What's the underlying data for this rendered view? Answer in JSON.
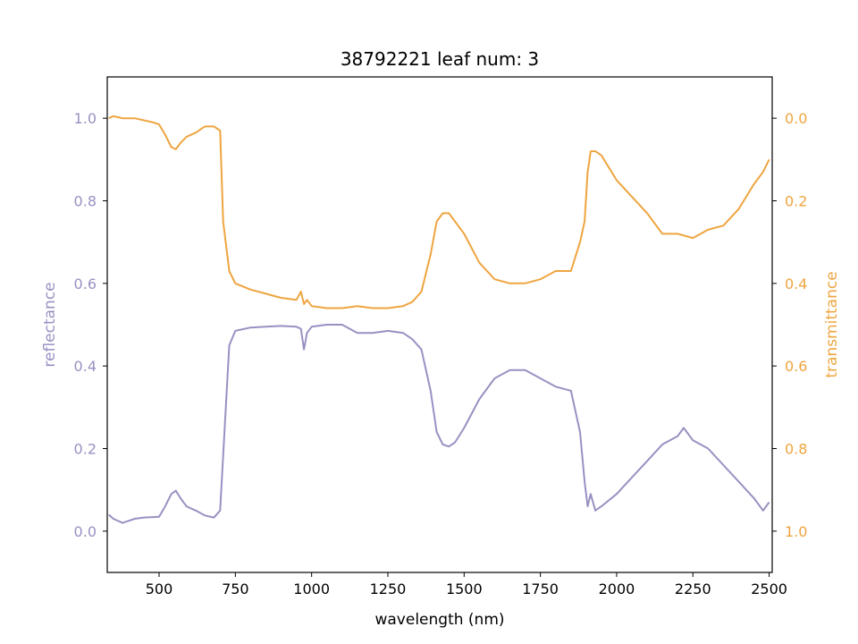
{
  "chart_data": {
    "type": "line",
    "title": "38792221 leaf num: 3",
    "xlabel": "wavelength (nm)",
    "ylabel_left": "reflectance",
    "ylabel_right": "transmittance",
    "xlim": [
      330,
      2510
    ],
    "ylim_left": [
      -0.1,
      1.1
    ],
    "ylim_right": [
      1.1,
      -0.1
    ],
    "right_axis_inverted": true,
    "x_ticks": [
      500,
      750,
      1000,
      1250,
      1500,
      1750,
      2000,
      2250,
      2500
    ],
    "x_tick_labels": [
      "500",
      "750",
      "1000",
      "1250",
      "1500",
      "1750",
      "2000",
      "2250",
      "2500"
    ],
    "y_left_ticks": [
      0.0,
      0.2,
      0.4,
      0.6,
      0.8,
      1.0
    ],
    "y_left_tick_labels": [
      "0.0",
      "0.2",
      "0.4",
      "0.6",
      "0.8",
      "1.0"
    ],
    "y_right_ticks": [
      0.0,
      0.2,
      0.4,
      0.6,
      0.8,
      1.0
    ],
    "y_right_tick_labels": [
      "0.0",
      "0.2",
      "0.4",
      "0.6",
      "0.8",
      "1.0"
    ],
    "grid": false,
    "legend": "none",
    "colors": {
      "reflectance": "#9891c2",
      "transmittance": "#eea540",
      "axes": "#000000"
    },
    "series": [
      {
        "axis": "left",
        "x": [
          335,
          350,
          380,
          400,
          420,
          450,
          480,
          500,
          520,
          540,
          555,
          570,
          590,
          620,
          650,
          680,
          700,
          715,
          730,
          750,
          800,
          850,
          900,
          950,
          965,
          975,
          985,
          1000,
          1050,
          1100,
          1150,
          1200,
          1250,
          1300,
          1330,
          1360,
          1390,
          1410,
          1430,
          1450,
          1470,
          1500,
          1550,
          1600,
          1650,
          1700,
          1750,
          1800,
          1850,
          1880,
          1895,
          1905,
          1915,
          1930,
          1950,
          2000,
          2050,
          2100,
          2150,
          2200,
          2220,
          2250,
          2300,
          2350,
          2400,
          2450,
          2480,
          2500
        ],
        "y": [
          0.04,
          0.03,
          0.02,
          0.025,
          0.03,
          0.033,
          0.034,
          0.035,
          0.06,
          0.09,
          0.098,
          0.08,
          0.06,
          0.05,
          0.038,
          0.033,
          0.05,
          0.25,
          0.45,
          0.485,
          0.493,
          0.495,
          0.497,
          0.495,
          0.49,
          0.44,
          0.48,
          0.495,
          0.5,
          0.5,
          0.48,
          0.48,
          0.485,
          0.48,
          0.465,
          0.44,
          0.34,
          0.24,
          0.21,
          0.205,
          0.215,
          0.25,
          0.32,
          0.37,
          0.39,
          0.39,
          0.37,
          0.35,
          0.34,
          0.24,
          0.12,
          0.06,
          0.09,
          0.05,
          0.06,
          0.09,
          0.13,
          0.17,
          0.21,
          0.23,
          0.25,
          0.22,
          0.2,
          0.16,
          0.12,
          0.08,
          0.05,
          0.07
        ]
      },
      {
        "axis": "right",
        "x": [
          335,
          350,
          380,
          420,
          450,
          480,
          500,
          520,
          540,
          555,
          570,
          590,
          620,
          650,
          680,
          700,
          710,
          730,
          750,
          800,
          850,
          900,
          950,
          965,
          975,
          985,
          1000,
          1050,
          1100,
          1150,
          1200,
          1250,
          1300,
          1330,
          1360,
          1390,
          1410,
          1430,
          1450,
          1470,
          1500,
          1550,
          1600,
          1650,
          1700,
          1750,
          1800,
          1850,
          1880,
          1895,
          1905,
          1915,
          1930,
          1950,
          2000,
          2050,
          2100,
          2150,
          2200,
          2250,
          2300,
          2350,
          2400,
          2450,
          2480,
          2500
        ],
        "y": [
          0.0,
          -0.005,
          0.0,
          0.0,
          0.005,
          0.01,
          0.015,
          0.04,
          0.07,
          0.075,
          0.06,
          0.045,
          0.035,
          0.02,
          0.02,
          0.03,
          0.25,
          0.37,
          0.4,
          0.415,
          0.425,
          0.435,
          0.44,
          0.42,
          0.45,
          0.44,
          0.455,
          0.46,
          0.46,
          0.455,
          0.46,
          0.46,
          0.455,
          0.445,
          0.42,
          0.33,
          0.25,
          0.23,
          0.23,
          0.25,
          0.28,
          0.35,
          0.39,
          0.4,
          0.4,
          0.39,
          0.37,
          0.37,
          0.3,
          0.25,
          0.13,
          0.08,
          0.08,
          0.09,
          0.15,
          0.19,
          0.23,
          0.28,
          0.28,
          0.29,
          0.27,
          0.26,
          0.22,
          0.16,
          0.13,
          0.1
        ]
      }
    ]
  }
}
